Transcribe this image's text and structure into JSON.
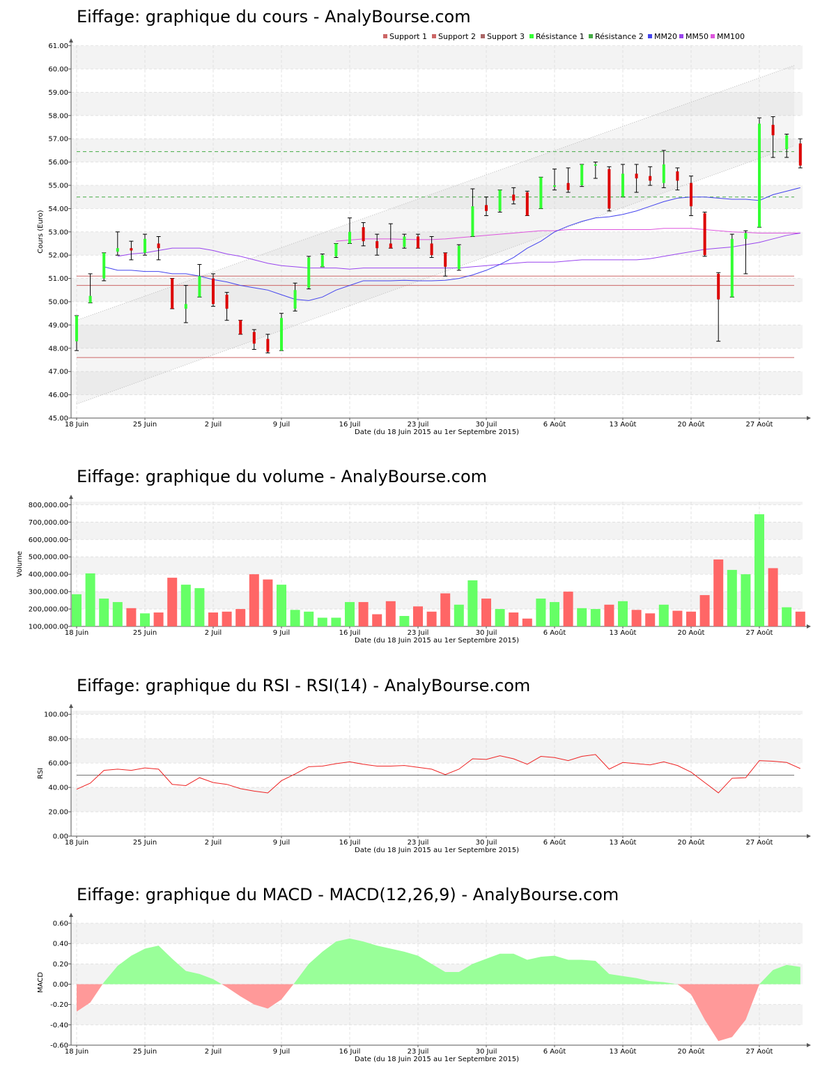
{
  "colors": {
    "up": "#33ff33",
    "down": "#dd0000",
    "vol_up": "#66ff66",
    "vol_down": "#ff6666",
    "support": "#cc6666",
    "resistance": "#44aa44",
    "mm20": "#4444ee",
    "mm50": "#9944ee",
    "mm100": "#dd55dd",
    "rsi": "#ee2222",
    "macd_pos": "#99ff99",
    "macd_neg": "#ff9999"
  },
  "chart_data": [
    {
      "type": "candlestick",
      "title": "Eiffage: graphique du cours - AnalyBourse.com",
      "ylabel": "Cours (Euro)",
      "xlabel": "Date (du 18 Juin 2015 au 1er Septembre 2015)",
      "ylim": [
        45,
        61.2
      ],
      "yticks": [
        "45.00",
        "46.00",
        "47.00",
        "48.00",
        "49.00",
        "50.00",
        "51.00",
        "52.00",
        "53.00",
        "54.00",
        "55.00",
        "56.00",
        "57.00",
        "58.00",
        "59.00",
        "60.00",
        "61.00"
      ],
      "xticks": [
        {
          "label": "18 Juin",
          "i": 0
        },
        {
          "label": "25 Juin",
          "i": 5
        },
        {
          "label": "2 Juil",
          "i": 10
        },
        {
          "label": "9 Juil",
          "i": 15
        },
        {
          "label": "16 Juil",
          "i": 20
        },
        {
          "label": "23 Juil",
          "i": 25
        },
        {
          "label": "30 Juil",
          "i": 30
        },
        {
          "label": "6 Août",
          "i": 35
        },
        {
          "label": "13 Août",
          "i": 40
        },
        {
          "label": "20 Août",
          "i": 45
        },
        {
          "label": "27 Août",
          "i": 50
        }
      ],
      "legend": [
        "Support 1",
        "Support 2",
        "Support 3",
        "Résistance 1",
        "Résistance 2",
        "MM20",
        "MM50",
        "MM100"
      ],
      "levels": {
        "support_1": 47.6,
        "support_2": 50.7,
        "support_3": 51.1,
        "resistance_1": 54.5,
        "resistance_2": 56.45
      },
      "channel": {
        "lower_start": 45.6,
        "upper_start": 49.2,
        "lower_end": 56.7,
        "upper_end": 60.15
      },
      "candles": [
        {
          "o": 48.3,
          "h": 49.4,
          "l": 47.9,
          "c": 49.4
        },
        {
          "o": 49.95,
          "h": 51.2,
          "l": 49.95,
          "c": 50.25
        },
        {
          "o": 51.0,
          "h": 52.1,
          "l": 50.9,
          "c": 52.1
        },
        {
          "o": 52.15,
          "h": 53.0,
          "l": 52.0,
          "c": 52.3
        },
        {
          "o": 52.3,
          "h": 52.6,
          "l": 51.8,
          "c": 52.2
        },
        {
          "o": 52.1,
          "h": 52.9,
          "l": 52.0,
          "c": 52.7
        },
        {
          "o": 52.5,
          "h": 52.8,
          "l": 51.8,
          "c": 52.3
        },
        {
          "o": 51.0,
          "h": 51.0,
          "l": 49.7,
          "c": 49.7
        },
        {
          "o": 49.7,
          "h": 50.7,
          "l": 49.1,
          "c": 49.9
        },
        {
          "o": 50.2,
          "h": 51.6,
          "l": 50.2,
          "c": 51.1
        },
        {
          "o": 51.0,
          "h": 51.2,
          "l": 49.8,
          "c": 49.9
        },
        {
          "o": 50.3,
          "h": 50.4,
          "l": 49.2,
          "c": 49.7
        },
        {
          "o": 49.2,
          "h": 49.2,
          "l": 48.6,
          "c": 48.6
        },
        {
          "o": 48.7,
          "h": 48.8,
          "l": 47.95,
          "c": 48.2
        },
        {
          "o": 48.4,
          "h": 48.6,
          "l": 47.8,
          "c": 47.85
        },
        {
          "o": 47.9,
          "h": 49.5,
          "l": 47.9,
          "c": 49.3
        },
        {
          "o": 49.7,
          "h": 50.8,
          "l": 49.6,
          "c": 50.5
        },
        {
          "o": 50.6,
          "h": 51.95,
          "l": 50.55,
          "c": 51.9
        },
        {
          "o": 51.5,
          "h": 52.05,
          "l": 51.5,
          "c": 52.0
        },
        {
          "o": 51.95,
          "h": 52.5,
          "l": 51.9,
          "c": 52.5
        },
        {
          "o": 52.5,
          "h": 53.6,
          "l": 52.5,
          "c": 53.0
        },
        {
          "o": 53.2,
          "h": 53.4,
          "l": 52.4,
          "c": 52.6
        },
        {
          "o": 52.6,
          "h": 52.9,
          "l": 52.0,
          "c": 52.3
        },
        {
          "o": 52.5,
          "h": 53.35,
          "l": 52.3,
          "c": 52.3
        },
        {
          "o": 52.35,
          "h": 52.9,
          "l": 52.3,
          "c": 52.8
        },
        {
          "o": 52.8,
          "h": 52.9,
          "l": 52.3,
          "c": 52.3
        },
        {
          "o": 52.5,
          "h": 52.8,
          "l": 51.9,
          "c": 52.0
        },
        {
          "o": 52.1,
          "h": 52.1,
          "l": 51.1,
          "c": 51.5
        },
        {
          "o": 51.4,
          "h": 52.45,
          "l": 51.35,
          "c": 52.4
        },
        {
          "o": 52.8,
          "h": 54.85,
          "l": 52.8,
          "c": 54.1
        },
        {
          "o": 54.15,
          "h": 54.5,
          "l": 53.7,
          "c": 53.9
        },
        {
          "o": 53.9,
          "h": 54.8,
          "l": 53.85,
          "c": 54.8
        },
        {
          "o": 54.6,
          "h": 54.9,
          "l": 54.2,
          "c": 54.35
        },
        {
          "o": 54.7,
          "h": 54.75,
          "l": 53.7,
          "c": 53.7
        },
        {
          "o": 54.0,
          "h": 55.35,
          "l": 54.0,
          "c": 55.35
        },
        {
          "o": 55.0,
          "h": 55.7,
          "l": 54.8,
          "c": 55.0
        },
        {
          "o": 55.1,
          "h": 55.75,
          "l": 54.7,
          "c": 54.8
        },
        {
          "o": 55.0,
          "h": 55.9,
          "l": 54.95,
          "c": 55.9
        },
        {
          "o": 55.9,
          "h": 56.0,
          "l": 55.3,
          "c": 55.9
        },
        {
          "o": 55.7,
          "h": 55.8,
          "l": 53.9,
          "c": 54.0
        },
        {
          "o": 54.5,
          "h": 55.9,
          "l": 54.5,
          "c": 55.5
        },
        {
          "o": 55.5,
          "h": 55.9,
          "l": 54.7,
          "c": 55.3
        },
        {
          "o": 55.4,
          "h": 55.8,
          "l": 55.0,
          "c": 55.2
        },
        {
          "o": 55.1,
          "h": 56.5,
          "l": 54.9,
          "c": 55.9
        },
        {
          "o": 55.6,
          "h": 55.75,
          "l": 54.8,
          "c": 55.2
        },
        {
          "o": 55.1,
          "h": 55.4,
          "l": 53.7,
          "c": 54.1
        },
        {
          "o": 53.8,
          "h": 53.85,
          "l": 51.95,
          "c": 52.0
        },
        {
          "o": 51.2,
          "h": 51.25,
          "l": 48.3,
          "c": 50.1
        },
        {
          "o": 50.2,
          "h": 52.9,
          "l": 50.2,
          "c": 52.7
        },
        {
          "o": 52.7,
          "h": 53.05,
          "l": 51.2,
          "c": 52.95
        },
        {
          "o": 53.2,
          "h": 57.9,
          "l": 53.2,
          "c": 57.65
        },
        {
          "o": 57.6,
          "h": 57.95,
          "l": 56.2,
          "c": 57.15
        },
        {
          "o": 56.55,
          "h": 57.2,
          "l": 56.2,
          "c": 57.15
        },
        {
          "o": 56.8,
          "h": 57.0,
          "l": 55.75,
          "c": 55.85
        }
      ],
      "mm20": [
        51.5,
        51.35,
        51.35,
        51.3,
        51.3,
        51.2,
        51.2,
        51.1,
        50.95,
        50.85,
        50.7,
        50.6,
        50.5,
        50.3,
        50.1,
        50.05,
        50.2,
        50.5,
        50.7,
        50.9,
        50.9,
        50.9,
        50.92,
        50.9,
        50.9,
        50.92,
        51.0,
        51.15,
        51.35,
        51.6,
        51.9,
        52.3,
        52.6,
        53.0,
        53.25,
        53.45,
        53.6,
        53.65,
        53.75,
        53.9,
        54.1,
        54.3,
        54.45,
        54.5,
        54.5,
        54.45,
        54.4,
        54.4,
        54.35,
        54.6,
        54.75,
        54.9
      ],
      "mm50": [
        51.95,
        52.05,
        52.1,
        52.2,
        52.3,
        52.3,
        52.3,
        52.2,
        52.05,
        51.95,
        51.8,
        51.65,
        51.55,
        51.5,
        51.45,
        51.45,
        51.45,
        51.4,
        51.45,
        51.45,
        51.45,
        51.45,
        51.45,
        51.45,
        51.45,
        51.45,
        51.5,
        51.55,
        51.6,
        51.65,
        51.7,
        51.7,
        51.7,
        51.75,
        51.8,
        51.8,
        51.8,
        51.8,
        51.8,
        51.85,
        51.95,
        52.05,
        52.15,
        52.25,
        52.3,
        52.35,
        52.45,
        52.55,
        52.7,
        52.85,
        52.95
      ],
      "mm100": [
        52.6,
        52.65,
        52.7,
        52.7,
        52.7,
        52.68,
        52.67,
        52.67,
        52.7,
        52.75,
        52.8,
        52.85,
        52.9,
        52.95,
        53.0,
        53.05,
        53.05,
        53.1,
        53.1,
        53.1,
        53.1,
        53.1,
        53.1,
        53.1,
        53.15,
        53.15,
        53.15,
        53.1,
        53.05,
        53.0,
        52.98,
        52.95,
        52.95,
        52.95,
        52.95
      ]
    },
    {
      "type": "bar",
      "title": "Eiffage: graphique du volume - AnalyBourse.com",
      "ylabel": "Volume",
      "xlabel": "Date (du 18 Juin 2015 au 1er Septembre 2015)",
      "ylim": [
        100000,
        820000
      ],
      "yticks": [
        "100,000.00",
        "200,000.00",
        "300,000.00",
        "400,000.00",
        "500,000.00",
        "600,000.00",
        "700,000.00",
        "800,000.00"
      ],
      "values": [
        285000,
        405000,
        260000,
        240000,
        205000,
        175000,
        180000,
        380000,
        340000,
        320000,
        180000,
        185000,
        200000,
        400000,
        370000,
        340000,
        195000,
        185000,
        150000,
        150000,
        240000,
        240000,
        170000,
        245000,
        160000,
        215000,
        185000,
        290000,
        225000,
        365000,
        260000,
        200000,
        180000,
        145000,
        260000,
        240000,
        300000,
        205000,
        200000,
        225000,
        245000,
        195000,
        175000,
        225000,
        190000,
        185000,
        280000,
        485000,
        425000,
        400000,
        745000,
        435000,
        210000,
        185000
      ]
    },
    {
      "type": "line",
      "title": "Eiffage: graphique du RSI - RSI(14) - AnalyBourse.com",
      "ylabel": "RSI",
      "xlabel": "Date (du 18 Juin 2015 au 1er Septembre 2015)",
      "ylim": [
        0,
        103
      ],
      "yticks": [
        "0.00",
        "20.00",
        "40.00",
        "60.00",
        "80.00",
        "100.00"
      ],
      "midline": 50,
      "values": [
        38.5,
        43.5,
        54.0,
        55.0,
        54.0,
        56.0,
        55.0,
        42.5,
        41.5,
        48.0,
        44.0,
        42.5,
        39.0,
        37.0,
        35.5,
        45.5,
        51.0,
        57.0,
        57.5,
        59.5,
        61.0,
        59.0,
        57.5,
        57.5,
        58.0,
        56.5,
        55.0,
        50.5,
        55.0,
        63.5,
        63.0,
        66.0,
        63.5,
        59.0,
        65.5,
        64.5,
        62.0,
        65.5,
        67.0,
        55.0,
        60.5,
        59.5,
        58.5,
        61.0,
        58.0,
        52.5,
        44.0,
        35.5,
        47.5,
        48.0,
        62.0,
        61.5,
        60.5,
        55.5
      ]
    },
    {
      "type": "area",
      "title": "Eiffage: graphique du MACD - MACD(12,26,9) - AnalyBourse.com",
      "ylabel": "MACD",
      "xlabel": "Date (du 18 Juin 2015 au 1er Septembre 2015)",
      "ylim": [
        -0.6,
        0.64
      ],
      "yticks": [
        "-0.60",
        "-0.40",
        "-0.20",
        "0.00",
        "0.20",
        "0.40",
        "0.60"
      ],
      "values": [
        -0.27,
        -0.18,
        0.02,
        0.18,
        0.28,
        0.35,
        0.38,
        0.25,
        0.13,
        0.1,
        0.05,
        -0.03,
        -0.12,
        -0.2,
        -0.24,
        -0.15,
        0.02,
        0.2,
        0.32,
        0.42,
        0.45,
        0.42,
        0.38,
        0.35,
        0.32,
        0.28,
        0.2,
        0.12,
        0.12,
        0.2,
        0.25,
        0.3,
        0.3,
        0.24,
        0.27,
        0.28,
        0.24,
        0.24,
        0.23,
        0.1,
        0.08,
        0.06,
        0.03,
        0.02,
        0.0,
        -0.1,
        -0.35,
        -0.56,
        -0.52,
        -0.35,
        0.0,
        0.14,
        0.19,
        0.17
      ]
    }
  ]
}
